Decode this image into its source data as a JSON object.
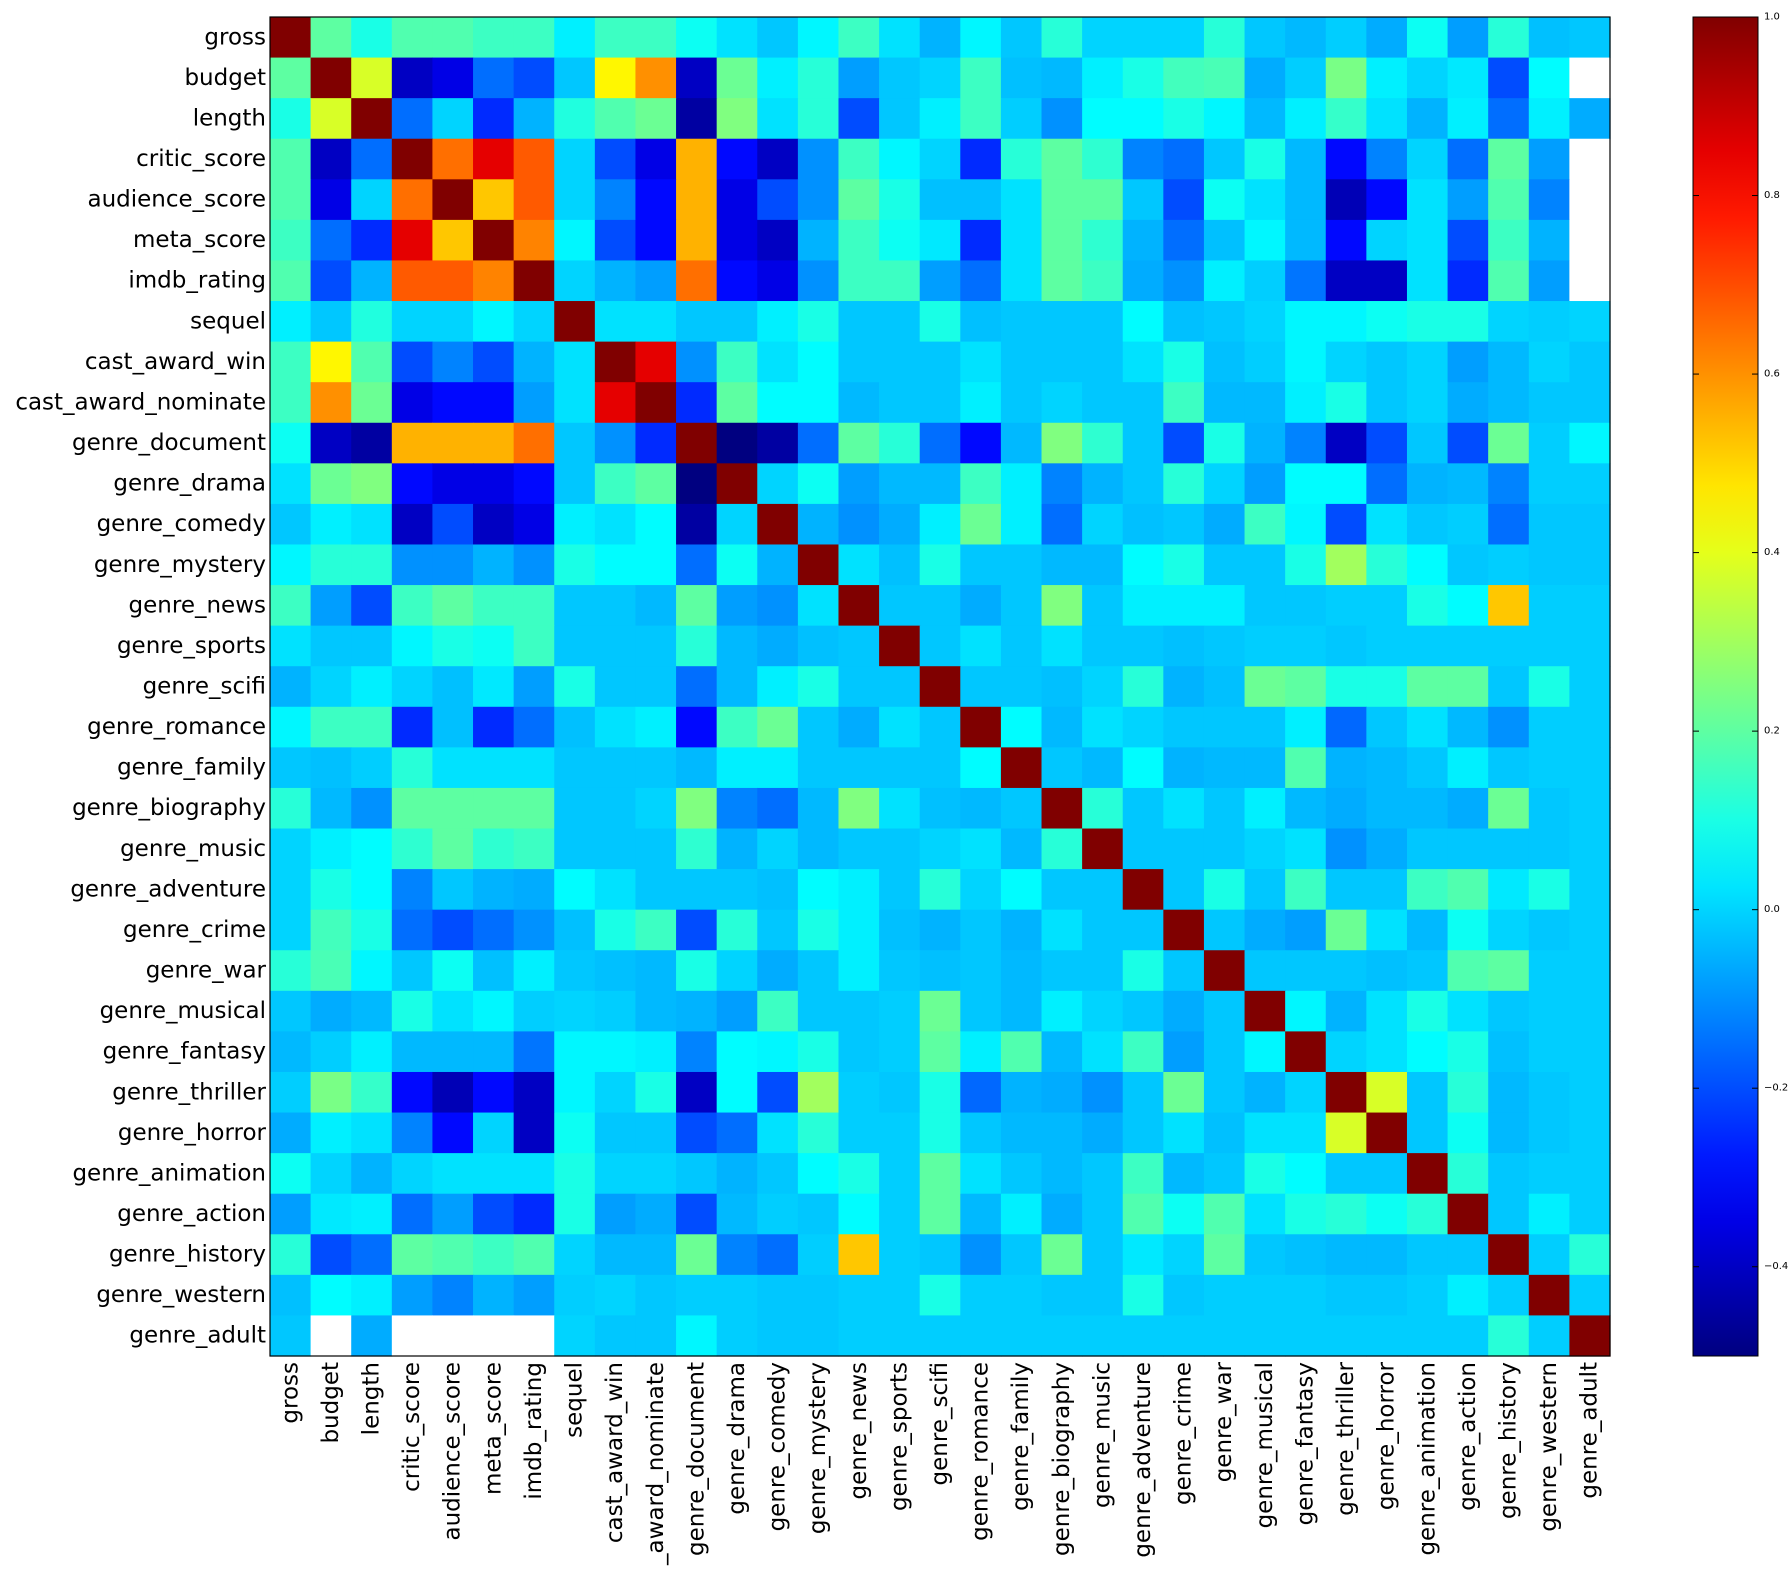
{
  "chart_data": {
    "type": "heatmap",
    "title": "",
    "xlabel": "",
    "ylabel": "",
    "colormap": "jet",
    "vmin": -0.5,
    "vmax": 1.0,
    "labels": [
      "gross",
      "budget",
      "length",
      "critic_score",
      "audience_score",
      "meta_score",
      "imdb_rating",
      "sequel",
      "cast_award_win",
      "cast_award_nominate",
      "genre_document",
      "genre_drama",
      "genre_comedy",
      "genre_mystery",
      "genre_news",
      "genre_sports",
      "genre_scifi",
      "genre_romance",
      "genre_family",
      "genre_biography",
      "genre_music",
      "genre_adventure",
      "genre_crime",
      "genre_war",
      "genre_musical",
      "genre_fantasy",
      "genre_thriller",
      "genre_horror",
      "genre_animation",
      "genre_action",
      "genre_history",
      "genre_western",
      "genre_adult"
    ],
    "x_tick_labels": [
      "gross",
      "budget",
      "length",
      "critic_score",
      "audience_score",
      "meta_score",
      "imdb_rating",
      "sequel",
      "cast_award_win",
      "_award_nominate",
      "genre_document",
      "genre_drama",
      "genre_comedy",
      "genre_mystery",
      "genre_news",
      "genre_sports",
      "genre_scifi",
      "genre_romance",
      "genre_family",
      "genre_biography",
      "genre_music",
      "genre_adventure",
      "genre_crime",
      "genre_war",
      "genre_musical",
      "genre_fantasy",
      "genre_thriller",
      "genre_horror",
      "genre_animation",
      "genre_action",
      "genre_history",
      "genre_western",
      "genre_adult"
    ],
    "matrix": [
      [
        1.0,
        0.2,
        0.1,
        0.18,
        0.18,
        0.15,
        0.15,
        0.04,
        0.15,
        0.15,
        0.08,
        0.02,
        -0.02,
        0.05,
        0.15,
        0.02,
        -0.05,
        0.05,
        -0.02,
        0.12,
        0.0,
        0.0,
        0.0,
        0.12,
        -0.02,
        -0.04,
        -0.01,
        -0.06,
        0.08,
        -0.08,
        0.12,
        -0.03,
        -0.02
      ],
      [
        0.2,
        1.0,
        0.38,
        -0.4,
        -0.35,
        -0.15,
        -0.2,
        -0.02,
        0.45,
        0.6,
        -0.4,
        0.22,
        0.04,
        0.12,
        -0.08,
        -0.02,
        0.0,
        0.15,
        -0.03,
        -0.04,
        0.04,
        0.1,
        0.16,
        0.17,
        -0.06,
        -0.01,
        0.24,
        0.04,
        0.0,
        0.03,
        -0.2,
        0.06,
        null
      ],
      [
        0.1,
        0.38,
        1.0,
        -0.15,
        0.0,
        -0.25,
        -0.05,
        0.11,
        0.18,
        0.22,
        -0.45,
        0.25,
        0.02,
        0.12,
        -0.2,
        -0.02,
        0.04,
        0.15,
        -0.01,
        -0.1,
        0.06,
        0.06,
        0.1,
        0.05,
        -0.04,
        0.04,
        0.14,
        0.02,
        -0.05,
        0.04,
        -0.15,
        0.04,
        -0.06
      ],
      [
        0.18,
        -0.4,
        -0.15,
        1.0,
        0.65,
        0.85,
        0.68,
        0.0,
        -0.2,
        -0.35,
        0.55,
        -0.3,
        -0.4,
        -0.1,
        0.15,
        0.05,
        0.0,
        -0.25,
        0.12,
        0.2,
        0.13,
        -0.12,
        -0.15,
        -0.02,
        0.1,
        -0.04,
        -0.3,
        -0.12,
        0.0,
        -0.15,
        0.2,
        -0.08,
        null
      ],
      [
        0.18,
        -0.35,
        0.0,
        0.65,
        1.0,
        0.52,
        0.68,
        0.0,
        -0.12,
        -0.3,
        0.55,
        -0.35,
        -0.2,
        -0.1,
        0.2,
        0.1,
        -0.03,
        -0.03,
        0.02,
        0.2,
        0.2,
        -0.02,
        -0.2,
        0.08,
        0.02,
        -0.04,
        -0.42,
        -0.3,
        0.02,
        -0.08,
        0.18,
        -0.12,
        null
      ],
      [
        0.15,
        -0.15,
        -0.25,
        0.85,
        0.52,
        1.0,
        0.62,
        0.05,
        -0.2,
        -0.3,
        0.55,
        -0.35,
        -0.4,
        -0.05,
        0.15,
        0.08,
        0.03,
        -0.25,
        0.02,
        0.2,
        0.13,
        -0.05,
        -0.15,
        -0.03,
        0.05,
        -0.04,
        -0.3,
        0.0,
        0.02,
        -0.2,
        0.15,
        -0.05,
        null
      ],
      [
        0.18,
        -0.2,
        -0.05,
        0.68,
        0.68,
        0.62,
        1.0,
        0.0,
        -0.05,
        -0.08,
        0.65,
        -0.3,
        -0.35,
        -0.1,
        0.15,
        0.15,
        -0.08,
        -0.15,
        0.02,
        0.2,
        0.15,
        -0.06,
        -0.1,
        0.04,
        -0.01,
        -0.14,
        -0.4,
        -0.4,
        0.02,
        -0.25,
        0.18,
        -0.08,
        null
      ],
      [
        0.04,
        -0.02,
        0.11,
        0.0,
        0.0,
        0.05,
        0.0,
        1.0,
        0.02,
        0.02,
        -0.02,
        -0.02,
        0.04,
        0.1,
        -0.02,
        -0.02,
        0.1,
        -0.03,
        -0.02,
        -0.02,
        -0.02,
        0.06,
        -0.03,
        -0.02,
        0.0,
        0.05,
        0.05,
        0.08,
        0.1,
        0.1,
        0.0,
        -0.01,
        0.0
      ],
      [
        0.15,
        0.45,
        0.18,
        -0.2,
        -0.12,
        -0.2,
        -0.05,
        0.02,
        1.0,
        0.85,
        -0.1,
        0.15,
        0.02,
        0.06,
        -0.02,
        -0.02,
        -0.02,
        0.02,
        -0.02,
        -0.02,
        -0.02,
        0.02,
        0.1,
        -0.03,
        -0.01,
        0.05,
        0.0,
        -0.02,
        0.0,
        -0.08,
        -0.04,
        0.0,
        -0.02
      ],
      [
        0.15,
        0.6,
        0.22,
        -0.35,
        -0.3,
        -0.3,
        -0.08,
        0.02,
        0.85,
        1.0,
        -0.25,
        0.2,
        0.06,
        0.06,
        -0.04,
        -0.02,
        -0.02,
        0.04,
        -0.02,
        0.0,
        -0.02,
        -0.02,
        0.15,
        -0.04,
        -0.04,
        0.04,
        0.1,
        -0.02,
        0.0,
        -0.06,
        -0.04,
        -0.02,
        -0.02
      ],
      [
        0.08,
        -0.4,
        -0.45,
        0.55,
        0.55,
        0.55,
        0.65,
        -0.02,
        -0.1,
        -0.25,
        1.0,
        -0.55,
        -0.45,
        -0.15,
        0.2,
        0.12,
        -0.15,
        -0.3,
        -0.04,
        0.25,
        0.13,
        -0.02,
        -0.2,
        0.1,
        -0.05,
        -0.12,
        -0.4,
        -0.2,
        -0.02,
        -0.2,
        0.22,
        -0.01,
        0.05
      ],
      [
        0.02,
        0.22,
        0.25,
        -0.3,
        -0.35,
        -0.35,
        -0.3,
        -0.02,
        0.15,
        0.2,
        -0.55,
        1.0,
        0.0,
        0.08,
        -0.08,
        -0.04,
        -0.04,
        0.15,
        0.04,
        -0.12,
        -0.05,
        -0.02,
        0.12,
        0.0,
        -0.08,
        0.06,
        0.06,
        -0.15,
        -0.05,
        -0.04,
        -0.12,
        -0.01,
        -0.01
      ],
      [
        -0.02,
        0.04,
        0.02,
        -0.4,
        -0.2,
        -0.4,
        -0.35,
        0.04,
        0.02,
        0.06,
        -0.45,
        0.0,
        1.0,
        -0.05,
        -0.1,
        -0.06,
        0.04,
        0.22,
        0.04,
        -0.15,
        0.0,
        -0.03,
        -0.02,
        -0.06,
        0.15,
        0.05,
        -0.2,
        0.02,
        -0.02,
        -0.01,
        -0.15,
        -0.02,
        -0.02
      ],
      [
        0.05,
        0.12,
        0.12,
        -0.1,
        -0.1,
        -0.05,
        -0.1,
        0.1,
        0.06,
        0.06,
        -0.15,
        0.08,
        -0.05,
        1.0,
        0.02,
        -0.03,
        0.1,
        -0.02,
        -0.02,
        -0.04,
        -0.04,
        0.06,
        0.1,
        -0.02,
        -0.02,
        0.1,
        0.3,
        0.12,
        0.06,
        -0.02,
        -0.01,
        -0.02,
        -0.02
      ],
      [
        0.15,
        -0.08,
        -0.2,
        0.15,
        0.2,
        0.15,
        0.15,
        -0.02,
        -0.02,
        -0.04,
        0.2,
        -0.08,
        -0.1,
        0.02,
        1.0,
        -0.02,
        -0.02,
        -0.06,
        -0.02,
        0.25,
        -0.02,
        0.04,
        0.04,
        0.04,
        -0.02,
        -0.02,
        -0.01,
        -0.01,
        0.1,
        0.06,
        0.52,
        -0.01,
        -0.01
      ],
      [
        0.02,
        -0.02,
        -0.02,
        0.05,
        0.1,
        0.08,
        0.15,
        -0.02,
        -0.02,
        -0.02,
        0.12,
        -0.04,
        -0.06,
        -0.03,
        -0.02,
        1.0,
        -0.02,
        0.02,
        -0.02,
        0.02,
        -0.02,
        -0.02,
        -0.03,
        -0.02,
        -0.01,
        -0.01,
        -0.02,
        -0.01,
        -0.01,
        -0.01,
        -0.01,
        -0.01,
        -0.01
      ],
      [
        -0.05,
        0.0,
        0.04,
        0.0,
        -0.03,
        0.03,
        -0.08,
        0.1,
        -0.02,
        -0.02,
        -0.15,
        -0.04,
        0.04,
        0.1,
        -0.02,
        -0.02,
        1.0,
        -0.02,
        -0.02,
        -0.03,
        0.0,
        0.12,
        -0.05,
        -0.03,
        0.22,
        0.2,
        0.1,
        0.1,
        0.2,
        0.2,
        -0.02,
        0.1,
        -0.01
      ],
      [
        0.05,
        0.15,
        0.15,
        -0.25,
        -0.03,
        -0.25,
        -0.15,
        -0.03,
        0.02,
        0.04,
        -0.3,
        0.15,
        0.22,
        -0.02,
        -0.06,
        0.02,
        -0.02,
        1.0,
        0.06,
        -0.04,
        0.02,
        0.0,
        -0.02,
        -0.02,
        -0.02,
        0.04,
        -0.16,
        -0.02,
        0.02,
        -0.04,
        -0.1,
        -0.01,
        -0.01
      ],
      [
        -0.02,
        -0.03,
        -0.01,
        0.12,
        0.02,
        0.02,
        0.02,
        -0.02,
        -0.02,
        -0.02,
        -0.04,
        0.04,
        0.04,
        -0.02,
        -0.02,
        -0.02,
        -0.02,
        0.06,
        1.0,
        -0.02,
        -0.04,
        0.06,
        -0.05,
        -0.04,
        -0.04,
        0.18,
        -0.05,
        -0.04,
        -0.02,
        0.04,
        -0.02,
        -0.01,
        -0.01
      ],
      [
        0.12,
        -0.04,
        -0.1,
        0.2,
        0.2,
        0.2,
        0.2,
        -0.02,
        -0.02,
        0.0,
        0.25,
        -0.12,
        -0.15,
        -0.04,
        0.25,
        0.02,
        -0.03,
        -0.04,
        -0.02,
        1.0,
        0.12,
        -0.02,
        0.02,
        -0.02,
        0.04,
        -0.04,
        -0.06,
        -0.04,
        -0.04,
        -0.06,
        0.22,
        -0.02,
        -0.01
      ],
      [
        0.0,
        0.04,
        0.06,
        0.13,
        0.2,
        0.13,
        0.15,
        -0.02,
        -0.02,
        -0.02,
        0.13,
        -0.05,
        0.0,
        -0.04,
        -0.02,
        -0.02,
        0.0,
        0.02,
        -0.04,
        0.12,
        1.0,
        -0.02,
        -0.02,
        -0.02,
        0.0,
        0.02,
        -0.1,
        -0.06,
        -0.02,
        -0.02,
        -0.02,
        -0.02,
        -0.01
      ],
      [
        0.0,
        0.1,
        0.06,
        -0.12,
        -0.02,
        -0.05,
        -0.06,
        0.06,
        0.02,
        -0.02,
        -0.02,
        -0.02,
        -0.03,
        0.06,
        0.04,
        -0.02,
        0.12,
        0.0,
        0.06,
        -0.02,
        -0.02,
        1.0,
        -0.02,
        0.1,
        -0.02,
        0.15,
        -0.02,
        -0.02,
        0.15,
        0.18,
        0.03,
        0.1,
        -0.01
      ],
      [
        0.0,
        0.16,
        0.1,
        -0.15,
        -0.2,
        -0.15,
        -0.1,
        -0.03,
        0.1,
        0.15,
        -0.2,
        0.12,
        -0.02,
        0.1,
        0.04,
        -0.03,
        -0.05,
        -0.02,
        -0.05,
        0.02,
        -0.02,
        -0.02,
        1.0,
        -0.02,
        -0.06,
        -0.08,
        0.22,
        0.02,
        -0.04,
        0.08,
        0.0,
        -0.02,
        -0.01
      ],
      [
        0.12,
        0.17,
        0.05,
        -0.02,
        0.08,
        -0.03,
        0.04,
        -0.02,
        -0.03,
        -0.04,
        0.1,
        0.0,
        -0.06,
        -0.02,
        0.04,
        -0.02,
        -0.03,
        -0.02,
        -0.04,
        -0.02,
        -0.02,
        0.1,
        -0.02,
        1.0,
        -0.02,
        -0.02,
        -0.02,
        -0.03,
        -0.02,
        0.18,
        0.2,
        -0.01,
        -0.01
      ],
      [
        -0.02,
        -0.06,
        -0.04,
        0.1,
        0.02,
        0.05,
        -0.01,
        0.0,
        -0.01,
        -0.04,
        -0.05,
        -0.08,
        0.15,
        -0.02,
        -0.02,
        -0.01,
        0.22,
        -0.02,
        -0.04,
        0.04,
        0.0,
        -0.02,
        -0.06,
        -0.02,
        1.0,
        0.05,
        -0.05,
        0.02,
        0.1,
        0.02,
        -0.02,
        -0.01,
        -0.01
      ],
      [
        -0.04,
        -0.01,
        0.04,
        -0.04,
        -0.04,
        -0.04,
        -0.14,
        0.05,
        0.05,
        0.04,
        -0.12,
        0.06,
        0.05,
        0.1,
        -0.02,
        -0.01,
        0.2,
        0.04,
        0.18,
        -0.04,
        0.02,
        0.15,
        -0.08,
        -0.02,
        0.05,
        1.0,
        0.0,
        0.02,
        0.06,
        0.1,
        -0.03,
        -0.01,
        -0.01
      ],
      [
        -0.01,
        0.24,
        0.14,
        -0.3,
        -0.42,
        -0.3,
        -0.4,
        0.05,
        0.0,
        0.1,
        -0.4,
        0.06,
        -0.2,
        0.3,
        -0.01,
        -0.02,
        0.1,
        -0.16,
        -0.05,
        -0.06,
        -0.1,
        -0.02,
        0.22,
        -0.02,
        -0.05,
        0.0,
        1.0,
        0.38,
        -0.02,
        0.12,
        -0.04,
        -0.02,
        -0.01
      ],
      [
        -0.06,
        0.04,
        0.02,
        -0.12,
        -0.3,
        0.0,
        -0.4,
        0.08,
        -0.02,
        -0.02,
        -0.2,
        -0.15,
        0.02,
        0.12,
        -0.01,
        -0.01,
        0.1,
        -0.02,
        -0.04,
        -0.04,
        -0.06,
        -0.02,
        0.02,
        -0.03,
        0.02,
        0.02,
        0.38,
        1.0,
        -0.02,
        0.08,
        -0.04,
        -0.02,
        -0.01
      ],
      [
        0.08,
        0.0,
        -0.05,
        0.0,
        0.02,
        0.02,
        0.02,
        0.1,
        0.0,
        0.0,
        -0.02,
        -0.05,
        -0.02,
        0.06,
        0.1,
        -0.01,
        0.2,
        0.02,
        -0.02,
        -0.04,
        -0.02,
        0.15,
        -0.04,
        -0.02,
        0.1,
        0.06,
        -0.02,
        -0.02,
        1.0,
        0.12,
        -0.02,
        -0.01,
        -0.01
      ],
      [
        -0.08,
        0.03,
        0.04,
        -0.15,
        -0.08,
        -0.2,
        -0.25,
        0.1,
        -0.08,
        -0.06,
        -0.2,
        -0.04,
        -0.01,
        -0.02,
        0.06,
        -0.01,
        0.2,
        -0.04,
        0.04,
        -0.06,
        -0.02,
        0.18,
        0.08,
        0.18,
        0.02,
        0.1,
        0.12,
        0.08,
        0.12,
        1.0,
        -0.02,
        0.04,
        -0.01
      ],
      [
        0.12,
        -0.2,
        -0.15,
        0.2,
        0.18,
        0.15,
        0.18,
        0.0,
        -0.04,
        -0.04,
        0.22,
        -0.12,
        -0.15,
        -0.01,
        0.52,
        -0.01,
        -0.02,
        -0.1,
        -0.02,
        0.22,
        -0.02,
        0.03,
        0.0,
        0.2,
        -0.02,
        -0.03,
        -0.04,
        -0.04,
        -0.02,
        -0.02,
        1.0,
        -0.01,
        0.12
      ],
      [
        -0.03,
        0.06,
        0.04,
        -0.08,
        -0.12,
        -0.05,
        -0.08,
        -0.01,
        0.0,
        -0.02,
        -0.01,
        -0.01,
        -0.02,
        -0.02,
        -0.01,
        -0.01,
        0.1,
        -0.01,
        -0.01,
        -0.02,
        -0.02,
        0.1,
        -0.02,
        -0.01,
        -0.01,
        -0.01,
        -0.02,
        -0.02,
        -0.01,
        0.04,
        -0.01,
        1.0,
        -0.01
      ],
      [
        -0.02,
        null,
        -0.06,
        null,
        null,
        null,
        null,
        0.0,
        -0.02,
        -0.02,
        0.05,
        -0.01,
        -0.02,
        -0.02,
        -0.01,
        -0.01,
        -0.01,
        -0.01,
        -0.01,
        -0.01,
        -0.01,
        -0.01,
        -0.01,
        -0.01,
        -0.01,
        -0.01,
        -0.01,
        -0.01,
        -0.01,
        -0.01,
        0.12,
        -0.01,
        1.0
      ]
    ],
    "colorbar": {
      "ticks": [
        1.0,
        0.8,
        0.6,
        0.4,
        0.2,
        0.0,
        -0.2,
        -0.4
      ],
      "tick_labels": [
        "1.0",
        "0.8",
        "0.6",
        "0.4",
        "0.2",
        "0.0",
        "−0.2",
        "−0.4"
      ]
    }
  }
}
